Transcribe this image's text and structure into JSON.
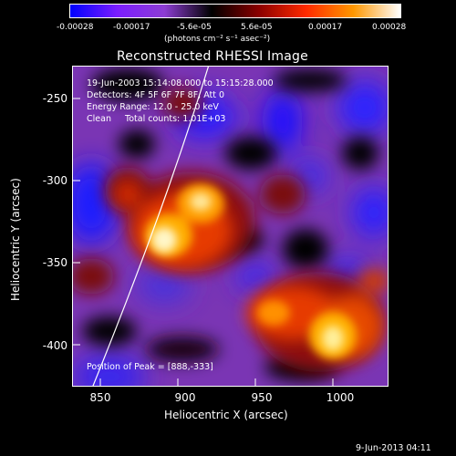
{
  "colorbar": {
    "ticks": [
      "-0.00028",
      "-0.00017",
      "-5.6e-05",
      "5.6e-05",
      "0.00017",
      "0.00028"
    ],
    "unit_label": "(photons cm⁻² s⁻¹ asec⁻²)",
    "gradient": [
      "#0000ff",
      "#7b1dff",
      "#8d3dd3",
      "#000000",
      "#8b0000",
      "#ff2a00",
      "#ff9800",
      "#ffffff"
    ]
  },
  "title": "Reconstructed RHESSI Image",
  "annotations": {
    "time_range": "19-Jun-2003 15:14:08.000 to 15:15:28.000",
    "detectors": "Detectors: 4F 5F 6F 7F 8F, Att 0",
    "energy": "Energy Range: 12.0 - 25.0 keV",
    "clean": "Clean     Total counts: 1.01E+03",
    "peak": "Position of Peak = [888,-333]"
  },
  "axes": {
    "x_title": "Heliocentric X (arcsec)",
    "y_title": "Heliocentric Y (arcsec)",
    "x_ticks": [
      "850",
      "900",
      "950",
      "1000"
    ],
    "y_ticks": [
      "-250",
      "-300",
      "-350",
      "-400"
    ]
  },
  "footer": {
    "timestamp": "9-Jun-2013 04:11"
  }
}
